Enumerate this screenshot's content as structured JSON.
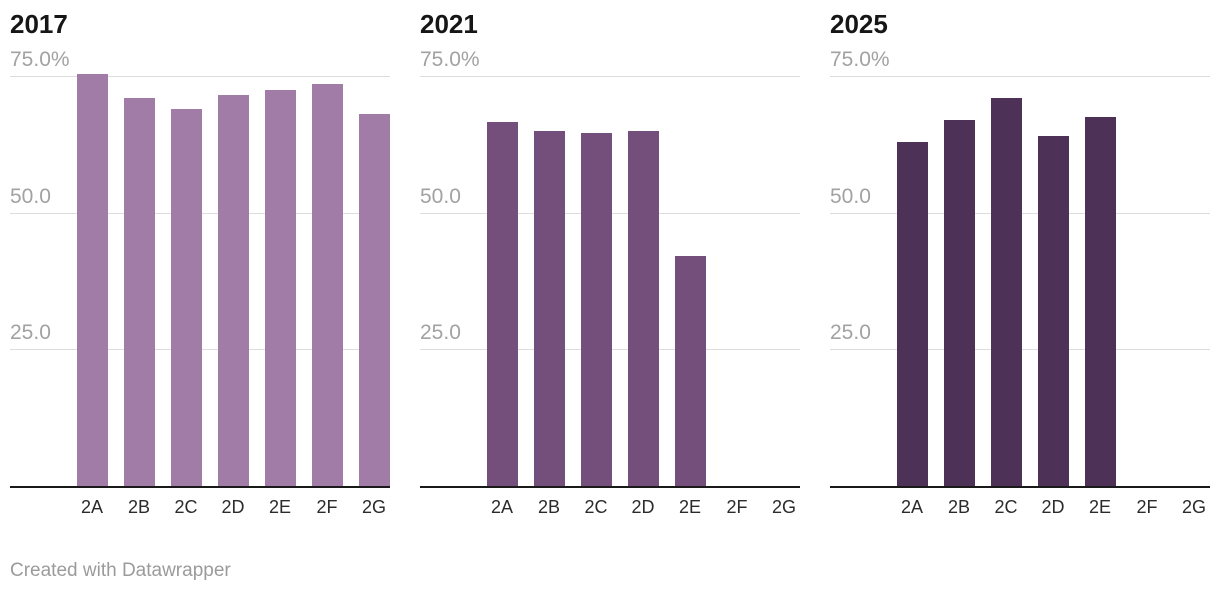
{
  "page": {
    "background": "#ffffff",
    "footer": "Created with Datawrapper"
  },
  "colors": {
    "gridline": "#dddddd",
    "axis_line": "#1a1a1a",
    "ytick_label": "#a2a2a2",
    "xtick_label": "#2b2b2b",
    "panel_title": "#161616",
    "footer_text": "#9b9b9b"
  },
  "chart_data": [
    {
      "type": "bar",
      "title": "2017",
      "bar_color": "#a07ca6",
      "categories": [
        "2A",
        "2B",
        "2C",
        "2D",
        "2E",
        "2F",
        "2G"
      ],
      "values": [
        75.3,
        71,
        69,
        71.5,
        72.5,
        73.5,
        68
      ],
      "unit": "%",
      "ylim": [
        0,
        80
      ],
      "grid": true,
      "legend": "none",
      "yticks": [
        {
          "value": 75,
          "label": "75.0%"
        },
        {
          "value": 50,
          "label": "50.0"
        },
        {
          "value": 25,
          "label": "25.0"
        }
      ]
    },
    {
      "type": "bar",
      "title": "2021",
      "bar_color": "#744f7c",
      "categories": [
        "2A",
        "2B",
        "2C",
        "2D",
        "2E",
        "2F",
        "2G"
      ],
      "values": [
        66.5,
        65,
        64.5,
        65,
        42,
        null,
        null
      ],
      "unit": "%",
      "ylim": [
        0,
        80
      ],
      "grid": true,
      "legend": "none",
      "yticks": [
        {
          "value": 75,
          "label": "75.0%"
        },
        {
          "value": 50,
          "label": "50.0"
        },
        {
          "value": 25,
          "label": "25.0"
        }
      ]
    },
    {
      "type": "bar",
      "title": "2025",
      "bar_color": "#4d3157",
      "categories": [
        "2A",
        "2B",
        "2C",
        "2D",
        "2E",
        "2F",
        "2G"
      ],
      "values": [
        63,
        67,
        71,
        64,
        67.5,
        null,
        null
      ],
      "unit": "%",
      "ylim": [
        0,
        80
      ],
      "grid": true,
      "legend": "none",
      "yticks": [
        {
          "value": 75,
          "label": "75.0%"
        },
        {
          "value": 50,
          "label": "50.0"
        },
        {
          "value": 25,
          "label": "25.0"
        }
      ]
    }
  ]
}
